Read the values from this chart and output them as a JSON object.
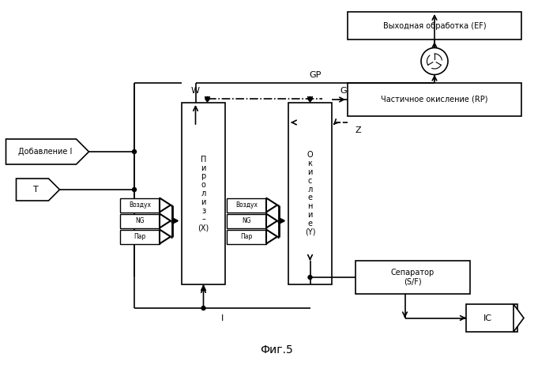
{
  "title": "Фиг.5",
  "bg_color": "#ffffff",
  "pyrolysis_text": "П\nи\nр\nо\nл\nи\nз\n–\n(X)",
  "oxidation_text": "О\nк\nи\nс\nл\nе\nн\nи\nе\n(Y)",
  "rp_text": "Частичное окисление (RP)",
  "ef_text": "Выходная обработка (EF)",
  "sep_text": "Сепаратор\n(S/F)",
  "ic_text": "IC",
  "add_text": "Добавление I",
  "T_text": "T",
  "input_labels": [
    "Воздух",
    "NG",
    "Пар"
  ],
  "label_GP": "GP",
  "label_W": "W",
  "label_G": "G",
  "label_Z": "Z",
  "label_I": "I"
}
